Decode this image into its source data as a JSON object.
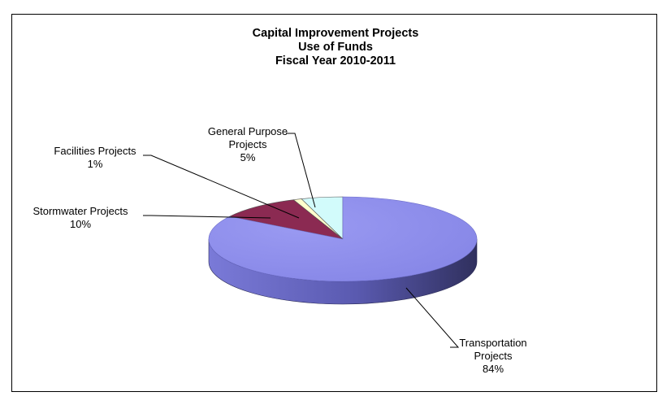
{
  "chart_data": {
    "type": "pie",
    "title": [
      "Capital Improvement Projects",
      "Use of Funds",
      "Fiscal Year 2010-2011"
    ],
    "slices": [
      {
        "name": [
          "General Purpose",
          "Projects"
        ],
        "percent_label": "5%",
        "value": 5,
        "color": "#d2fbfb"
      },
      {
        "name": [
          "Facilities Projects"
        ],
        "percent_label": "1%",
        "value": 1,
        "color": "#ffffcc"
      },
      {
        "name": [
          "Stormwater Projects"
        ],
        "percent_label": "10%",
        "value": 10,
        "color": "#8b2a52"
      },
      {
        "name": [
          "Transportation",
          "Projects"
        ],
        "percent_label": "84%",
        "value": 84,
        "color": "#8f8fef"
      }
    ],
    "three_d": true,
    "legend": "none"
  }
}
